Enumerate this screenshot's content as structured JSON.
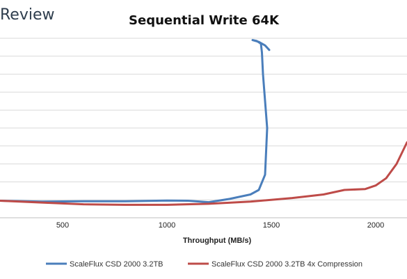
{
  "brand": {
    "text": "Review"
  },
  "chart_data": {
    "type": "line",
    "title": "Sequential Write 64K",
    "xlabel": "Throughput (MB/s)",
    "ylabel": "",
    "xlim": [
      200,
      2150
    ],
    "ylim": [
      0,
      10
    ],
    "x_ticks": [
      500,
      1000,
      1500,
      2000
    ],
    "x_tick_labels": [
      "500",
      "1000",
      "1500",
      "2000"
    ],
    "grid": "horizontal",
    "legend_position": "bottom",
    "series": [
      {
        "name": "ScaleFlux CSD 2000 3.2TB",
        "color": "#4a7ebb",
        "points": [
          [
            200,
            0.95
          ],
          [
            400,
            0.9
          ],
          [
            600,
            0.92
          ],
          [
            800,
            0.92
          ],
          [
            1000,
            0.96
          ],
          [
            1100,
            0.95
          ],
          [
            1200,
            0.87
          ],
          [
            1300,
            1.05
          ],
          [
            1400,
            1.3
          ],
          [
            1440,
            1.55
          ],
          [
            1470,
            2.4
          ],
          [
            1480,
            5.0
          ],
          [
            1470,
            6.5
          ],
          [
            1460,
            8.0
          ],
          [
            1455,
            9.2
          ],
          [
            1450,
            9.7
          ],
          [
            1430,
            9.85
          ],
          [
            1410,
            9.9
          ],
          [
            1440,
            9.8
          ],
          [
            1470,
            9.6
          ],
          [
            1490,
            9.35
          ]
        ]
      },
      {
        "name": "ScaleFlux CSD 2000 3.2TB 4x Compression",
        "color": "#be4b48",
        "points": [
          [
            200,
            0.95
          ],
          [
            400,
            0.85
          ],
          [
            600,
            0.75
          ],
          [
            800,
            0.72
          ],
          [
            1000,
            0.72
          ],
          [
            1200,
            0.78
          ],
          [
            1400,
            0.9
          ],
          [
            1600,
            1.1
          ],
          [
            1750,
            1.3
          ],
          [
            1850,
            1.55
          ],
          [
            1950,
            1.6
          ],
          [
            2000,
            1.8
          ],
          [
            2050,
            2.2
          ],
          [
            2100,
            3.0
          ],
          [
            2150,
            4.2
          ]
        ]
      }
    ]
  },
  "colors": {
    "gridline": "#d9d9d9",
    "axis": "#bfbfbf",
    "series_blue": "#4a7ebb",
    "series_red": "#be4b48"
  }
}
